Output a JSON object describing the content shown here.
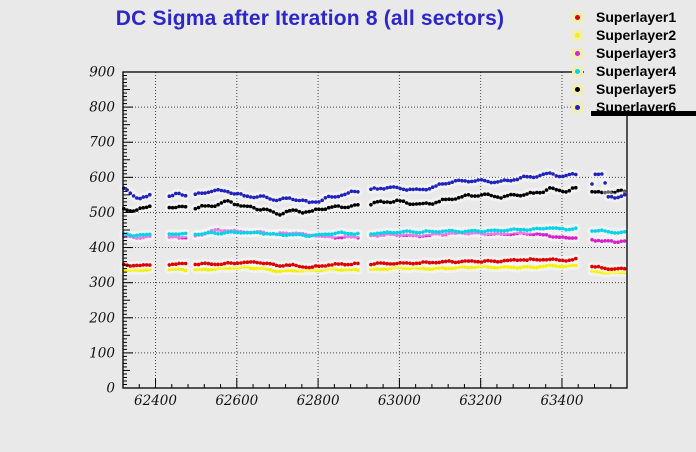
{
  "title": {
    "text": "DC Sigma after Iteration 8 (all sectors)",
    "color": "#2d26c9"
  },
  "legend": {
    "chip_color": "#f0eeb6",
    "items": [
      {
        "label": "Superlayer1",
        "color": "#e00000"
      },
      {
        "label": "Superlayer2",
        "color": "#f5f200"
      },
      {
        "label": "Superlayer3",
        "color": "#d822cc"
      },
      {
        "label": "Superlayer4",
        "color": "#00d4e8"
      },
      {
        "label": "Superlayer5",
        "color": "#000000"
      },
      {
        "label": "Superlayer6",
        "color": "#2121bd"
      }
    ]
  },
  "chart_data": {
    "type": "scatter",
    "title": "DC Sigma after Iteration 8 (all sectors)",
    "xlabel": "",
    "ylabel": "",
    "xlim": [
      62320,
      63560
    ],
    "ylim": [
      0,
      900
    ],
    "x_ticks": [
      62400,
      62600,
      62800,
      63000,
      63200,
      63400
    ],
    "y_ticks": [
      0,
      100,
      200,
      300,
      400,
      500,
      600,
      700,
      800,
      900
    ],
    "grid": true,
    "legend_position": "top-right",
    "data_range": [
      62322,
      63557
    ],
    "gaps": [
      [
        62388,
        62432
      ],
      [
        62480,
        62498
      ],
      [
        62905,
        62925
      ],
      [
        63438,
        63468
      ]
    ],
    "point_step": 8,
    "anchor_x": [
      62322,
      62350,
      62385,
      62435,
      62460,
      62478,
      62500,
      62540,
      62580,
      62620,
      62660,
      62700,
      62740,
      62780,
      62820,
      62860,
      62900,
      62930,
      62970,
      63010,
      63050,
      63090,
      63130,
      63170,
      63210,
      63250,
      63290,
      63330,
      63370,
      63410,
      63435,
      63470,
      63478,
      63502,
      63512,
      63530,
      63544,
      63557
    ],
    "series": [
      {
        "name": "Superlayer1",
        "color": "#e00000",
        "noise": [
          1.5,
          1.5,
          2.5
        ],
        "anchor_y": [
          352,
          349,
          352,
          352,
          353,
          352,
          352,
          354,
          356,
          358,
          356,
          348,
          350,
          345,
          350,
          352,
          352,
          353,
          356,
          357,
          355,
          357,
          360,
          362,
          362,
          361,
          363,
          365,
          368,
          364,
          367,
          345,
          343,
          341,
          340,
          338,
          339,
          340
        ]
      },
      {
        "name": "Superlayer2",
        "color": "#f5f200",
        "noise": [
          1.5,
          1.5,
          2.0
        ],
        "anchor_y": [
          338,
          335,
          337,
          338,
          338,
          337,
          338,
          340,
          341,
          342,
          341,
          334,
          336,
          332,
          336,
          338,
          337,
          338,
          340,
          341,
          340,
          341,
          343,
          344,
          344,
          343,
          345,
          346,
          348,
          345,
          347,
          333,
          332,
          331,
          330,
          329,
          330,
          331
        ]
      },
      {
        "name": "Superlayer3",
        "color": "#d822cc",
        "noise": [
          1.5,
          1.5,
          2.5
        ],
        "anchor_y": [
          431,
          428,
          430,
          430,
          431,
          430,
          432,
          446,
          448,
          446,
          444,
          438,
          440,
          436,
          432,
          430,
          430,
          432,
          436,
          437,
          435,
          437,
          439,
          440,
          440,
          439,
          440,
          438,
          432,
          428,
          430,
          425,
          422,
          419,
          418,
          415,
          416,
          418
        ]
      },
      {
        "name": "Superlayer4",
        "color": "#00d4e8",
        "noise": [
          1.5,
          1.5,
          2.0
        ],
        "anchor_y": [
          440,
          436,
          438,
          437,
          438,
          437,
          438,
          442,
          444,
          442,
          440,
          436,
          438,
          435,
          438,
          440,
          438,
          440,
          444,
          445,
          443,
          445,
          447,
          448,
          448,
          447,
          450,
          452,
          458,
          452,
          455,
          448,
          447,
          446,
          445,
          443,
          444,
          445
        ]
      },
      {
        "name": "Superlayer5",
        "color": "#000000",
        "noise": [
          3.0,
          2.5,
          3.0
        ],
        "anchor_y": [
          512,
          500,
          518,
          515,
          518,
          516,
          515,
          520,
          528,
          515,
          512,
          498,
          505,
          498,
          512,
          518,
          522,
          525,
          530,
          528,
          522,
          532,
          540,
          545,
          548,
          545,
          552,
          555,
          565,
          558,
          568,
          560,
          559,
          560,
          563,
          556,
          560,
          562
        ]
      },
      {
        "name": "Superlayer6",
        "color": "#2121bd",
        "noise": [
          3.0,
          2.5,
          3.0
        ],
        "anchor_y": [
          570,
          538,
          552,
          548,
          552,
          550,
          548,
          560,
          562,
          548,
          545,
          532,
          538,
          528,
          542,
          552,
          558,
          562,
          572,
          570,
          565,
          572,
          585,
          590,
          592,
          588,
          595,
          600,
          610,
          605,
          612,
          550,
          606,
          610,
          542,
          536,
          545,
          552
        ]
      }
    ],
    "draw_order": [
      "Superlayer2",
      "Superlayer1",
      "Superlayer3",
      "Superlayer4",
      "Superlayer5",
      "Superlayer6"
    ]
  }
}
